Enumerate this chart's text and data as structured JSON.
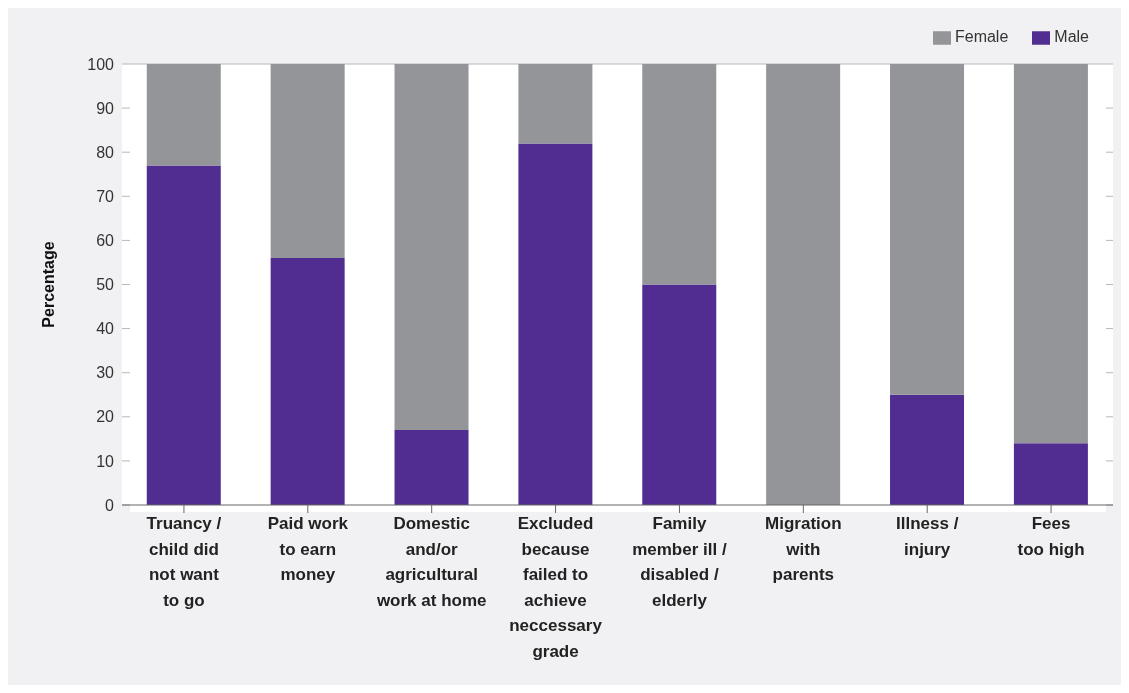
{
  "chart_data": {
    "type": "bar",
    "stacked": true,
    "ylabel": "Percentage",
    "categories": [
      "Truancy /\nchild did\nnot want\nto go",
      "Paid work\nto earn\nmoney",
      "Domestic\nand/or\nagricultural\nwork at home",
      "Excluded\nbecause\nfailed to\nachieve\nneccessary\ngrade",
      "Family\nmember ill /\ndisabled /\nelderly",
      "Migration\nwith\nparents",
      "Illness /\ninjury",
      "Fees\ntoo high"
    ],
    "series": [
      {
        "name": "Male",
        "color": "#522d91",
        "values": [
          77,
          56,
          17,
          82,
          50,
          0,
          25,
          14
        ]
      },
      {
        "name": "Female",
        "color": "#939598",
        "values": [
          23,
          44,
          83,
          18,
          50,
          100,
          75,
          86
        ]
      }
    ],
    "ylim": [
      0,
      100
    ],
    "yticks": [
      0,
      10,
      20,
      30,
      40,
      50,
      60,
      70,
      80,
      90,
      100
    ],
    "grid": "y",
    "legend": "top right"
  }
}
